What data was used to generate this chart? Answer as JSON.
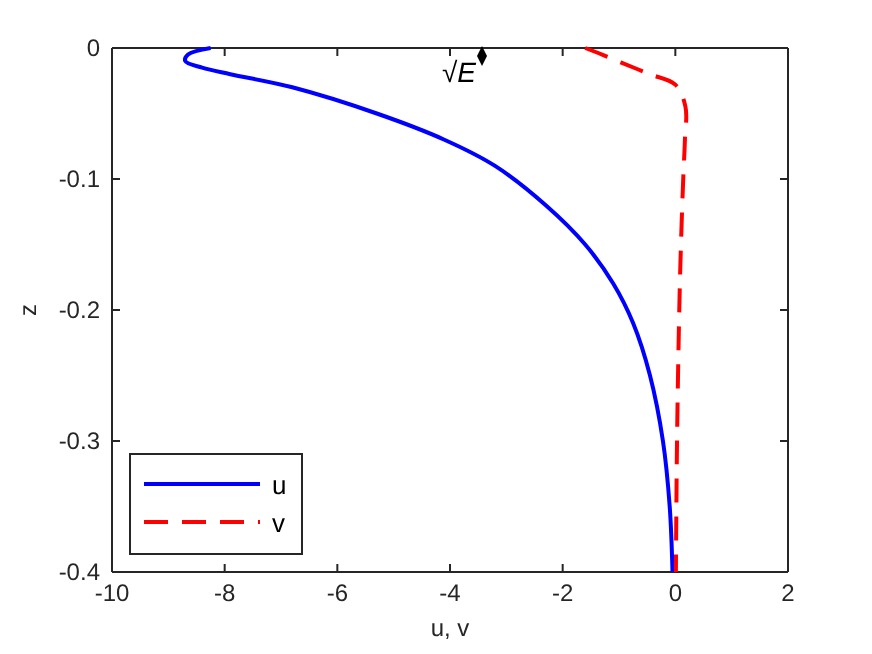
{
  "chart_data": {
    "type": "line",
    "xlabel": "u, v",
    "ylabel": "z",
    "xlim": [
      -10,
      2
    ],
    "ylim": [
      -0.4,
      0
    ],
    "xticks": [
      -10,
      -8,
      -6,
      -4,
      -2,
      0,
      2
    ],
    "yticks": [
      -0.4,
      -0.3,
      -0.2,
      -0.1,
      0
    ],
    "grid": false,
    "legend": "bottom left",
    "annotations": [
      "√E"
    ],
    "series": [
      {
        "name": "u",
        "color": "#0000ff",
        "line_style": "solid",
        "x": [
          -8.25,
          -8.65,
          -8.7,
          -8.4,
          -7.9,
          -6.8,
          -5.3,
          -4.1,
          -3.2,
          -2.3,
          -1.6,
          -1.1,
          -0.75,
          -0.45,
          -0.22,
          -0.1,
          -0.05
        ],
        "values": [
          0,
          -0.005,
          -0.01,
          -0.015,
          -0.02,
          -0.03,
          -0.05,
          -0.07,
          -0.09,
          -0.12,
          -0.15,
          -0.18,
          -0.21,
          -0.25,
          -0.3,
          -0.35,
          -0.4
        ]
      },
      {
        "name": "v",
        "color": "#ff0000",
        "line_style": "dashed",
        "x": [
          -1.6,
          -1.3,
          -0.97,
          -0.45,
          0,
          0.18,
          0.17,
          0.14,
          0.1,
          0.07,
          0.03,
          0.01
        ],
        "values": [
          0,
          -0.005,
          -0.011,
          -0.02,
          -0.028,
          -0.045,
          -0.07,
          -0.1,
          -0.15,
          -0.2,
          -0.3,
          -0.4
        ]
      }
    ]
  }
}
